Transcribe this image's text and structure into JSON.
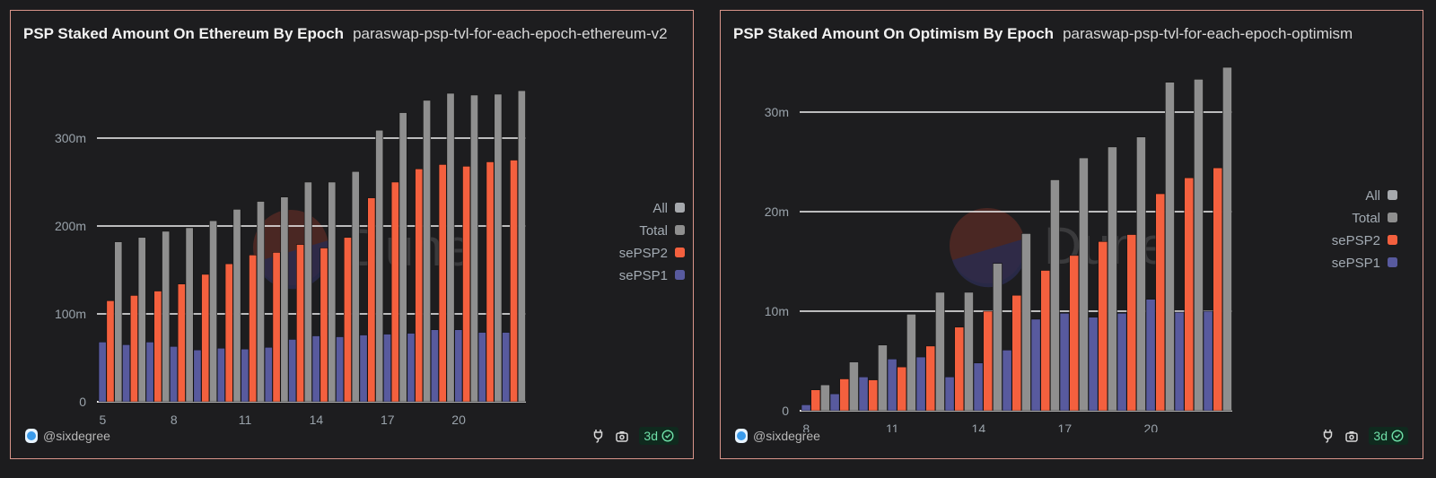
{
  "colors": {
    "all": "#a6a9ad",
    "total": "#8f8f8f",
    "sepsp2": "#f4603e",
    "sepsp1": "#585a9e",
    "gridline": "#f2f2f2",
    "watermark_top": "#5a2b26",
    "watermark_bottom": "#2a2b4e"
  },
  "watermark": "Dune",
  "panels": [
    {
      "title": "PSP Staked Amount On Ethereum By Epoch",
      "query_name": "paraswap-psp-tvl-for-each-epoch-ethereum-v2",
      "author": "@sixdegree",
      "age": "3d"
    },
    {
      "title": "PSP Staked Amount On Optimism By Epoch",
      "query_name": "paraswap-psp-tvl-for-each-epoch-optimism",
      "author": "@sixdegree",
      "age": "3d"
    }
  ],
  "chart_data": [
    {
      "type": "bar",
      "title": "PSP Staked Amount On Ethereum By Epoch",
      "xlabel": "",
      "ylabel": "",
      "x": [
        5,
        6,
        7,
        8,
        9,
        10,
        11,
        12,
        13,
        14,
        15,
        16,
        17,
        18,
        19,
        20,
        21,
        22
      ],
      "x_ticks": [
        5,
        8,
        11,
        14,
        17,
        20
      ],
      "y_ticks": [
        0,
        100,
        200,
        300
      ],
      "y_tick_labels": [
        "0",
        "100m",
        "200m",
        "300m"
      ],
      "ylim": [
        0,
        360
      ],
      "unit": "millions",
      "grid": true,
      "legend_position": "right",
      "legend": [
        "All",
        "Total",
        "sePSP2",
        "sePSP1"
      ],
      "series": [
        {
          "name": "sePSP1",
          "values": [
            68,
            65,
            68,
            63,
            59,
            61,
            60,
            62,
            71,
            75,
            74,
            76,
            77,
            78,
            82,
            82,
            79,
            79
          ]
        },
        {
          "name": "sePSP2",
          "values": [
            115,
            121,
            126,
            134,
            145,
            157,
            167,
            170,
            179,
            175,
            187,
            232,
            250,
            265,
            270,
            268,
            273,
            275
          ]
        },
        {
          "name": "Total",
          "values": [
            182,
            187,
            194,
            198,
            206,
            219,
            228,
            233,
            250,
            250,
            262,
            309,
            329,
            343,
            351,
            349,
            350,
            354
          ]
        }
      ]
    },
    {
      "type": "bar",
      "title": "PSP Staked Amount On Optimism By Epoch",
      "xlabel": "",
      "ylabel": "",
      "x": [
        8,
        9,
        10,
        11,
        12,
        13,
        14,
        15,
        16,
        17,
        18,
        19,
        20,
        21,
        22
      ],
      "x_ticks": [
        8,
        11,
        14,
        17,
        20
      ],
      "y_ticks": [
        0,
        10,
        20,
        30
      ],
      "y_tick_labels": [
        "0",
        "10m",
        "20m",
        "30m"
      ],
      "ylim": [
        0,
        36
      ],
      "unit": "millions",
      "grid": true,
      "legend_position": "right",
      "legend": [
        "All",
        "Total",
        "sePSP2",
        "sePSP1"
      ],
      "series": [
        {
          "name": "sePSP1",
          "values": [
            0.6,
            1.7,
            3.4,
            5.2,
            5.4,
            3.4,
            4.8,
            6.1,
            9.2,
            9.8,
            9.4,
            9.8,
            11.2,
            9.9,
            10.0
          ]
        },
        {
          "name": "sePSP2",
          "values": [
            2.1,
            3.2,
            3.1,
            4.4,
            6.5,
            8.4,
            10.0,
            11.6,
            14.1,
            15.6,
            17.0,
            17.7,
            21.8,
            23.4,
            24.4
          ]
        },
        {
          "name": "Total",
          "values": [
            2.6,
            4.9,
            6.6,
            9.7,
            11.9,
            11.9,
            14.8,
            17.8,
            23.2,
            25.4,
            26.5,
            27.5,
            33.0,
            33.3,
            34.5
          ]
        }
      ]
    }
  ]
}
